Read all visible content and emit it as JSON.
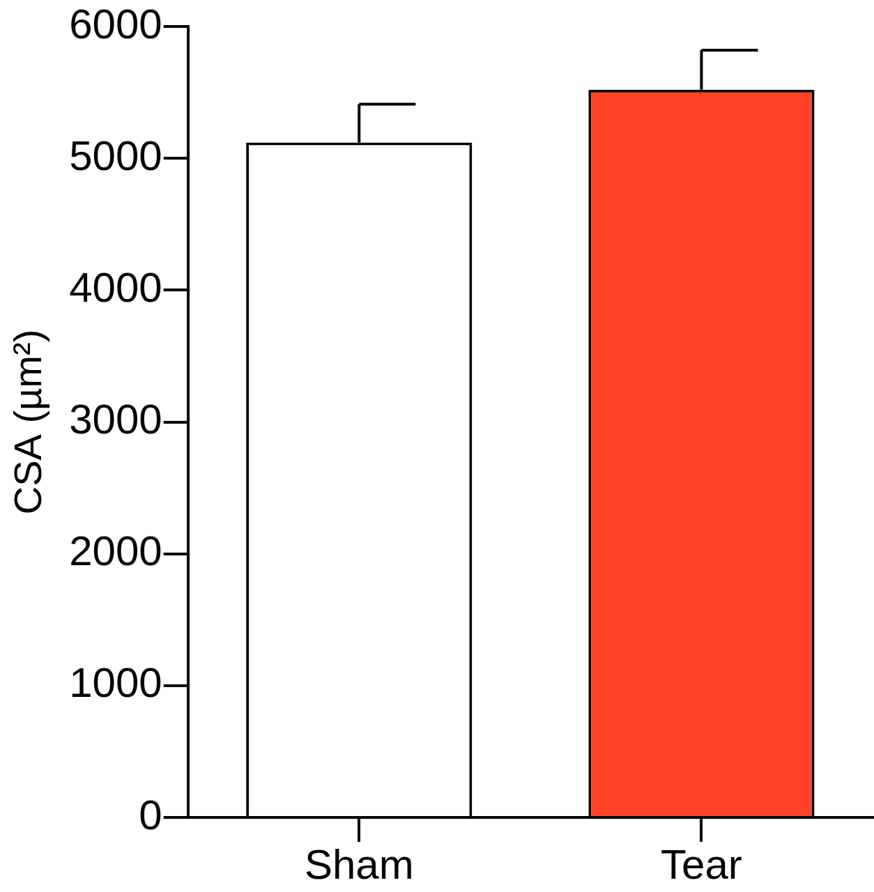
{
  "chart_data": {
    "type": "bar",
    "y_label": "CSA (µm²)",
    "categories": [
      "Sham",
      "Tear"
    ],
    "values": [
      5120,
      5520
    ],
    "errors": [
      290,
      300
    ],
    "colors": [
      "#ffffff",
      "#ff4128"
    ],
    "ylim": [
      0,
      6000
    ],
    "yticks": [
      0,
      1000,
      2000,
      3000,
      4000,
      5000,
      6000
    ],
    "grid": false
  }
}
